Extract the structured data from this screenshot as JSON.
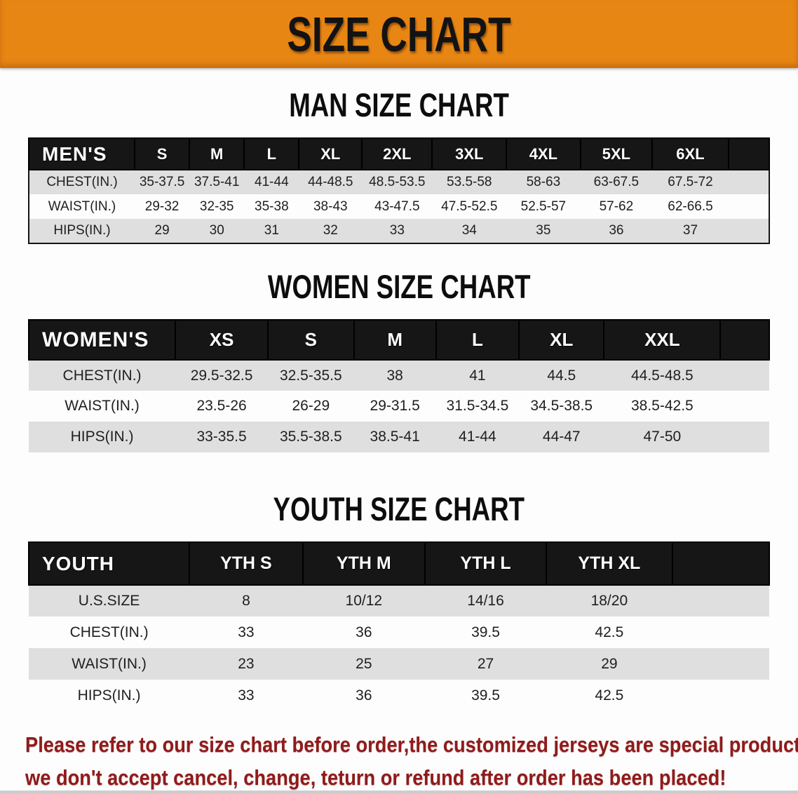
{
  "banner": {
    "title": "SIZE CHART",
    "bg_color": "#E88614"
  },
  "colors": {
    "header_row_bg": "#161616",
    "alt_row_bg": "#DFDFDF",
    "footer_text": "#8F1B1B"
  },
  "chart_data": [
    {
      "type": "table",
      "title": "MAN SIZE CHART",
      "header_label": "MEN'S",
      "columns": [
        "S",
        "M",
        "L",
        "XL",
        "2XL",
        "3XL",
        "4XL",
        "5XL",
        "6XL"
      ],
      "rows": [
        {
          "label": "CHEST(IN.)",
          "values": [
            "35-37.5",
            "37.5-41",
            "41-44",
            "44-48.5",
            "48.5-53.5",
            "53.5-58",
            "58-63",
            "63-67.5",
            "67.5-72"
          ]
        },
        {
          "label": "WAIST(IN.)",
          "values": [
            "29-32",
            "32-35",
            "35-38",
            "38-43",
            "43-47.5",
            "47.5-52.5",
            "52.5-57",
            "57-62",
            "62-66.5"
          ]
        },
        {
          "label": "HIPS(IN.)",
          "values": [
            "29",
            "30",
            "31",
            "32",
            "33",
            "34",
            "35",
            "36",
            "37"
          ]
        }
      ]
    },
    {
      "type": "table",
      "title": "WOMEN SIZE CHART",
      "header_label": "WOMEN'S",
      "columns": [
        "XS",
        "S",
        "M",
        "L",
        "XL",
        "XXL"
      ],
      "rows": [
        {
          "label": "CHEST(IN.)",
          "values": [
            "29.5-32.5",
            "32.5-35.5",
            "38",
            "41",
            "44.5",
            "44.5-48.5"
          ]
        },
        {
          "label": "WAIST(IN.)",
          "values": [
            "23.5-26",
            "26-29",
            "29-31.5",
            "31.5-34.5",
            "34.5-38.5",
            "38.5-42.5"
          ]
        },
        {
          "label": "HIPS(IN.)",
          "values": [
            "33-35.5",
            "35.5-38.5",
            "38.5-41",
            "41-44",
            "44-47",
            "47-50"
          ]
        }
      ]
    },
    {
      "type": "table",
      "title": "YOUTH SIZE CHART",
      "header_label": "YOUTH",
      "columns": [
        "YTH S",
        "YTH M",
        "YTH L",
        "YTH XL"
      ],
      "rows": [
        {
          "label": "U.S.SIZE",
          "values": [
            "8",
            "10/12",
            "14/16",
            "18/20"
          ]
        },
        {
          "label": "CHEST(IN.)",
          "values": [
            "33",
            "36",
            "39.5",
            "42.5"
          ]
        },
        {
          "label": "WAIST(IN.)",
          "values": [
            "23",
            "25",
            "27",
            "29"
          ]
        },
        {
          "label": "HIPS(IN.)",
          "values": [
            "33",
            "36",
            "39.5",
            "42.5"
          ]
        }
      ]
    }
  ],
  "footer": {
    "line1": "Please refer to our size chart before order,the customized jerseys are special products,",
    "line2": "we don't accept cancel, change, teturn or refund after order has been placed!"
  }
}
